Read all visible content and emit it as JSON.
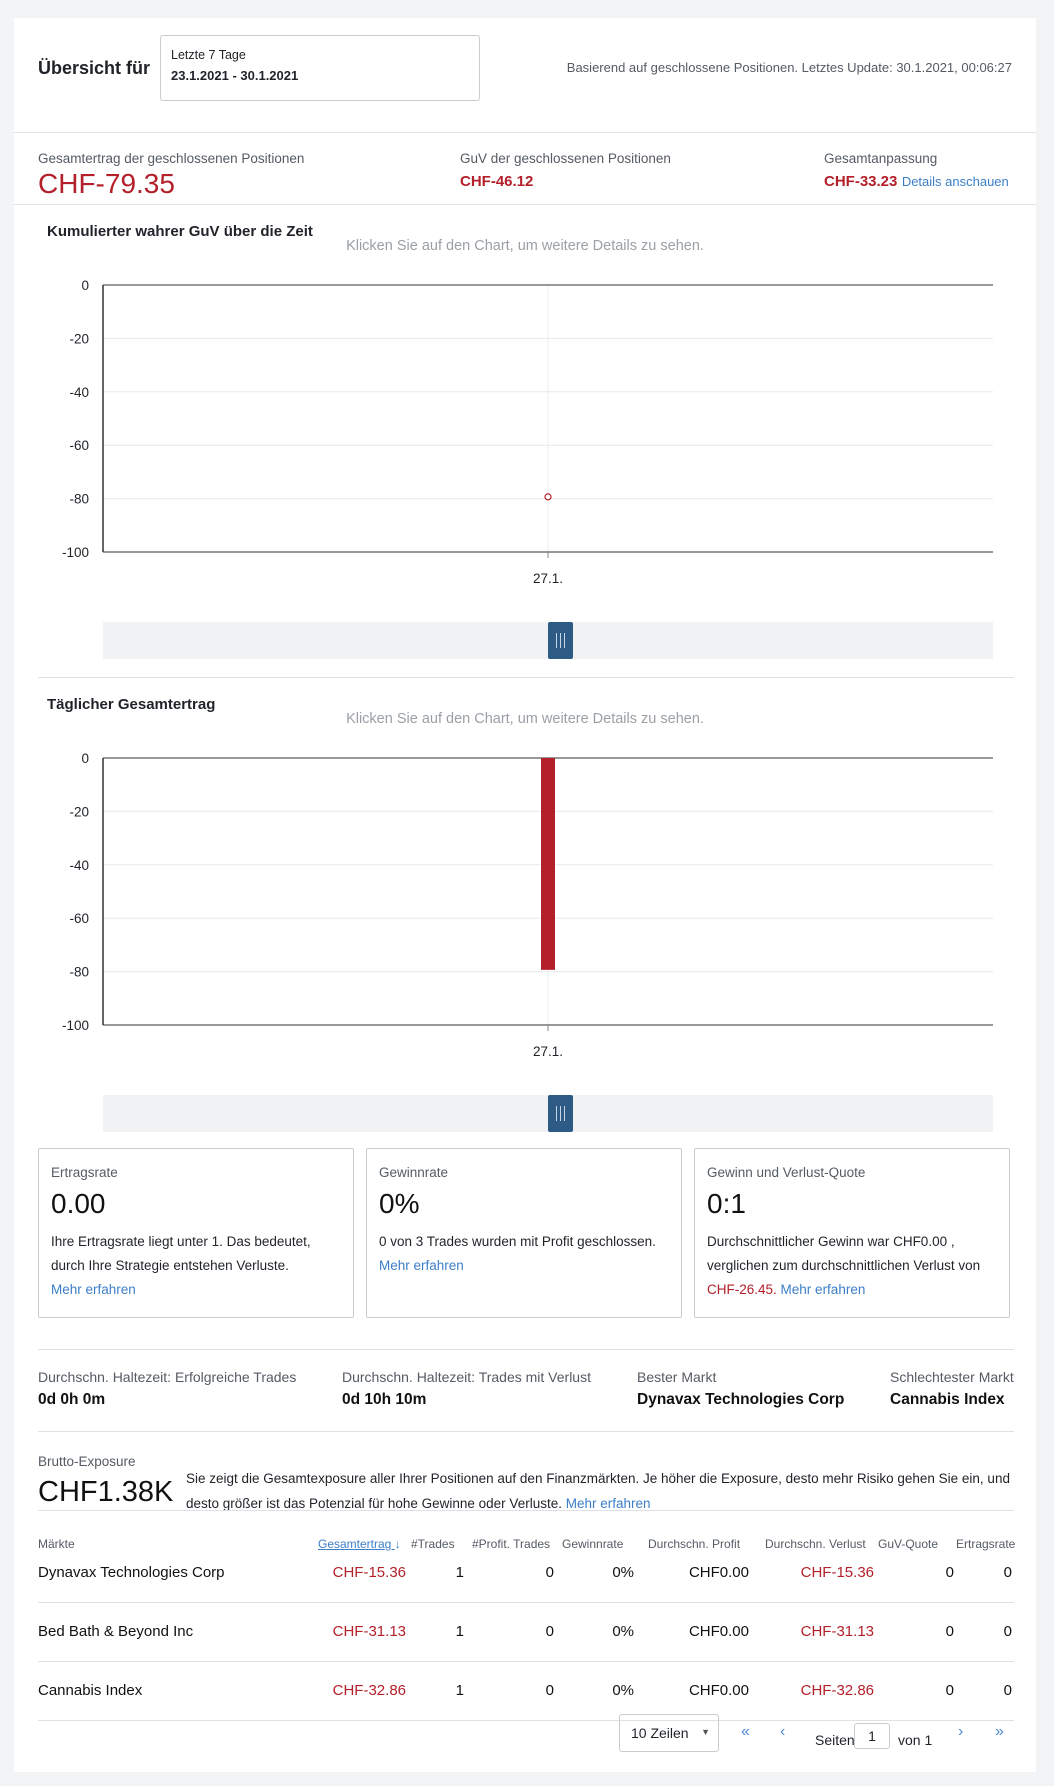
{
  "header": {
    "title": "Übersicht für",
    "range_label": "Letzte 7 Tage",
    "range_dates": "23.1.2021 - 30.1.2021",
    "update_text": "Basierend auf geschlossene Positionen. Letztes Update: 30.1.2021, 00:06:27"
  },
  "stats": {
    "total": {
      "label": "Gesamtertrag der geschlossenen Positionen",
      "value": "CHF-79.35"
    },
    "pnl": {
      "label": "GuV der geschlossenen Positionen",
      "value": "CHF-46.12"
    },
    "adjust": {
      "label": "Gesamtanpassung",
      "value": "CHF-33.23",
      "link": "Details anschauen"
    }
  },
  "charts": {
    "cumulative": {
      "title": "Kumulierter wahrer GuV über die Zeit",
      "hint": "Klicken Sie auf den Chart, um weitere Details zu sehen."
    },
    "daily": {
      "title": "Täglicher Gesamtertrag",
      "hint": "Klicken Sie auf den Chart, um weitere Details zu sehen."
    }
  },
  "chart_data": [
    {
      "type": "scatter",
      "title": "Kumulierter wahrer GuV über die Zeit",
      "x": [
        "27.1."
      ],
      "values": [
        -79.35
      ],
      "ylim": [
        -100,
        0
      ],
      "yticks": [
        0,
        -20,
        -40,
        -60,
        -80,
        -100
      ],
      "grid": true,
      "color": "#b3202a"
    },
    {
      "type": "bar",
      "title": "Täglicher Gesamtertrag",
      "categories": [
        "27.1."
      ],
      "values": [
        -79.35
      ],
      "ylim": [
        -100,
        0
      ],
      "yticks": [
        0,
        -20,
        -40,
        -60,
        -80,
        -100
      ],
      "grid": true,
      "color": "#b3202a"
    }
  ],
  "metrics": {
    "yield": {
      "title": "Ertragsrate",
      "value": "0.00",
      "desc": "Ihre Ertragsrate liegt unter 1. Das bedeutet, durch Ihre Strategie entstehen Verluste.",
      "link": "Mehr erfahren"
    },
    "win": {
      "title": "Gewinnrate",
      "value": "0%",
      "desc": "0 von 3 Trades wurden mit Profit geschlossen.",
      "link": "Mehr erfahren"
    },
    "ratio": {
      "title": "Gewinn und Verlust-Quote",
      "value": "0:1",
      "desc_a": "Durchschnittlicher Gewinn war CHF0.00 , verglichen zum durchschnittlichen Verlust von",
      "loss": "CHF-26.45.",
      "link": "Mehr erfahren"
    }
  },
  "holding": {
    "win_label": "Durchschn. Haltezeit: Erfolgreiche Trades",
    "win_value": "0d 0h 0m",
    "loss_label": "Durchschn. Haltezeit: Trades mit Verlust",
    "loss_value": "0d 10h 10m",
    "best_label": "Bester Markt",
    "best_value": "Dynavax Technologies Corp",
    "worst_label": "Schlechtester Markt",
    "worst_value": "Cannabis Index"
  },
  "exposure": {
    "label": "Brutto-Exposure",
    "value": "CHF1.38K",
    "desc": "Sie zeigt die Gesamtexposure aller Ihrer Positionen auf den Finanzmärkten. Je höher die Exposure, desto mehr Risiko gehen Sie ein, und desto größer ist das Potenzial für hohe Gewinne oder Verluste.",
    "link": "Mehr erfahren"
  },
  "table": {
    "headers": [
      "Märkte",
      "Gesamtertrag",
      "#Trades",
      "#Profit. Trades",
      "Gewinnrate",
      "Durchschn. Profit",
      "Durchschn. Verlust",
      "GuV-Quote",
      "Ertragsrate"
    ],
    "sort_icon": "arrow-down-icon",
    "rows": [
      [
        "Dynavax Technologies Corp",
        "CHF-15.36",
        "1",
        "0",
        "0%",
        "CHF0.00",
        "CHF-15.36",
        "0",
        "0"
      ],
      [
        "Bed Bath & Beyond Inc",
        "CHF-31.13",
        "1",
        "0",
        "0%",
        "CHF0.00",
        "CHF-31.13",
        "0",
        "0"
      ],
      [
        "Cannabis Index",
        "CHF-32.86",
        "1",
        "0",
        "0%",
        "CHF0.00",
        "CHF-32.86",
        "0",
        "0"
      ]
    ]
  },
  "pagination": {
    "rows_select": "10 Zeilen",
    "page_label": "Seiten",
    "page": "1",
    "of_label": "von 1"
  }
}
